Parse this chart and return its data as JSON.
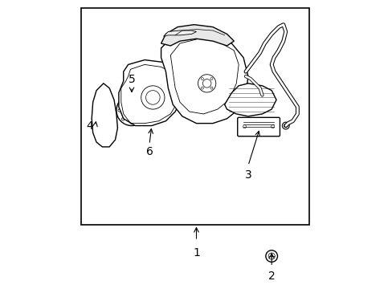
{
  "bg_color": "#ffffff",
  "border_color": "#000000",
  "line_color": "#000000",
  "label_color": "#000000",
  "figsize": [
    4.89,
    3.6
  ],
  "dpi": 100,
  "label_fontsize": 10
}
